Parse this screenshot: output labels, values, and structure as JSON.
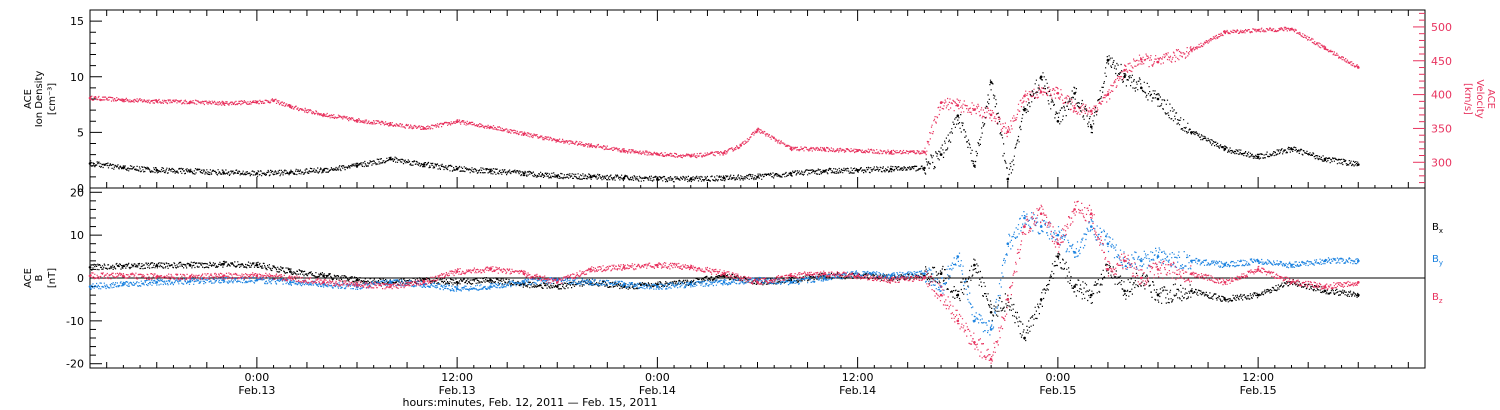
{
  "colors": {
    "black": "#000000",
    "pink": "#e8335f",
    "blue": "#1b82e0"
  },
  "chart_data": [
    {
      "type": "scatter",
      "panel": "plasma",
      "left_axis": {
        "label_line1": "ACE",
        "label_line2": "Ion Density",
        "label_line3": "[cm⁻³]",
        "ylim": [
          0,
          16
        ],
        "ticks": [
          "0",
          "5",
          "10",
          "15"
        ],
        "tick_values": [
          0,
          5,
          10,
          15
        ]
      },
      "right_axis": {
        "label_line1": "ACE",
        "label_line2": "Velocity",
        "label_line3": "[km/s]",
        "ylim": [
          262,
          525
        ],
        "ticks": [
          "300",
          "350",
          "400",
          "450",
          "500"
        ],
        "tick_values": [
          300,
          350,
          400,
          450,
          500
        ]
      },
      "xlim_hours": [
        -10,
        70
      ],
      "series": [
        {
          "axis": "left",
          "color": "#000000",
          "x": [
            -10,
            -8,
            -6,
            -4,
            -2,
            0,
            2,
            4,
            6,
            8,
            10,
            12,
            14,
            16,
            18,
            20,
            22,
            24,
            26,
            28,
            30,
            32,
            34,
            36,
            38,
            40,
            41,
            42,
            43,
            44,
            45,
            46,
            47,
            48,
            49,
            50,
            51,
            52,
            53,
            54,
            56,
            58,
            60,
            62,
            64,
            66
          ],
          "y": [
            2.2,
            1.8,
            1.6,
            1.5,
            1.4,
            1.3,
            1.4,
            1.6,
            2.0,
            2.6,
            2.1,
            1.7,
            1.5,
            1.3,
            1.1,
            1.0,
            0.9,
            0.8,
            0.8,
            0.9,
            1.0,
            1.3,
            1.5,
            1.6,
            1.7,
            1.8,
            3.0,
            6.5,
            2.0,
            9.5,
            0.8,
            7.0,
            10.0,
            6.0,
            8.5,
            5.5,
            11.5,
            10.0,
            9.0,
            8.0,
            5.0,
            3.5,
            2.8,
            3.5,
            2.6,
            2.1
          ]
        },
        {
          "axis": "right",
          "color": "#e8335f",
          "x": [
            -10,
            -8,
            -6,
            -4,
            -2,
            0,
            1,
            2,
            4,
            6,
            8,
            10,
            12,
            14,
            16,
            18,
            20,
            22,
            24,
            26,
            28,
            29,
            30,
            32,
            34,
            36,
            38,
            40,
            41,
            42,
            43,
            44,
            45,
            46,
            47,
            48,
            49,
            50,
            51,
            52,
            53,
            54,
            56,
            58,
            60,
            62,
            64,
            66
          ],
          "y": [
            395,
            392,
            390,
            389,
            387,
            389,
            391,
            382,
            370,
            362,
            356,
            350,
            360,
            352,
            342,
            332,
            325,
            317,
            312,
            309,
            314,
            325,
            348,
            320,
            319,
            317,
            315,
            315,
            388,
            384,
            378,
            370,
            345,
            398,
            404,
            402,
            380,
            376,
            400,
            436,
            452,
            448,
            466,
            492,
            495,
            497,
            468,
            440
          ]
        }
      ]
    },
    {
      "type": "scatter",
      "panel": "magnetic-field",
      "left_axis": {
        "label_line1": "ACE",
        "label_line2": "B",
        "label_line3": "[nT]",
        "ylim": [
          -21,
          21
        ],
        "ticks": [
          "-20",
          "-10",
          "0",
          "10",
          "20"
        ],
        "tick_values": [
          -20,
          -10,
          0,
          10,
          20
        ]
      },
      "xlim_hours": [
        -10,
        70
      ],
      "x_axis": {
        "ticks": [
          {
            "hour": 0,
            "time": "0:00",
            "date": "Feb.13"
          },
          {
            "hour": 12,
            "time": "12:00",
            "date": "Feb.13"
          },
          {
            "hour": 24,
            "time": "0:00",
            "date": "Feb.14"
          },
          {
            "hour": 36,
            "time": "12:00",
            "date": "Feb.14"
          },
          {
            "hour": 48,
            "time": "0:00",
            "date": "Feb.15"
          },
          {
            "hour": 60,
            "time": "12:00",
            "date": "Feb.15"
          }
        ],
        "label": "hours:minutes, Feb. 12, 2011 — Feb. 15, 2011"
      },
      "legend": [
        {
          "label": "B",
          "sub": "x",
          "color": "#000000"
        },
        {
          "label": "B",
          "sub": "y",
          "color": "#1b82e0"
        },
        {
          "label": "B",
          "sub": "z",
          "color": "#e8335f"
        }
      ],
      "series": [
        {
          "name": "Bx",
          "color": "#000000",
          "x": [
            -10,
            -8,
            -6,
            -4,
            -2,
            0,
            2,
            4,
            6,
            8,
            10,
            12,
            14,
            16,
            18,
            20,
            22,
            24,
            26,
            28,
            30,
            32,
            34,
            36,
            38,
            40,
            41,
            42,
            43,
            44,
            45,
            46,
            47,
            48,
            49,
            50,
            51,
            52,
            53,
            54,
            56,
            58,
            60,
            62,
            64,
            66
          ],
          "y": [
            2.5,
            2.8,
            2.9,
            3.0,
            3.2,
            3.0,
            1.5,
            0.5,
            -0.5,
            -1.0,
            -0.5,
            -1.0,
            -0.5,
            -1.5,
            -2.0,
            -1.0,
            -2.0,
            -1.5,
            -1.0,
            0.5,
            -1.0,
            -0.5,
            0.5,
            0.5,
            0.0,
            0.5,
            1.0,
            -4.0,
            3.0,
            -8.0,
            -5.0,
            -14.0,
            -5.0,
            5.0,
            -2.0,
            -4.0,
            2.0,
            -3.0,
            0.0,
            -4.0,
            -3.0,
            -5.0,
            -4.0,
            -1.0,
            -3.0,
            -4.0
          ]
        },
        {
          "name": "By",
          "color": "#1b82e0",
          "x": [
            -10,
            -8,
            -6,
            -4,
            -2,
            0,
            2,
            4,
            6,
            8,
            10,
            12,
            14,
            16,
            18,
            20,
            22,
            24,
            26,
            28,
            30,
            32,
            34,
            36,
            38,
            40,
            41,
            42,
            43,
            44,
            45,
            46,
            47,
            48,
            49,
            50,
            51,
            52,
            53,
            54,
            56,
            58,
            60,
            62,
            64,
            66
          ],
          "y": [
            -2.0,
            -1.5,
            -1.0,
            -0.8,
            -0.5,
            -0.5,
            -1.0,
            -1.5,
            -2.0,
            -1.0,
            -1.5,
            -2.5,
            -2.0,
            -1.0,
            -0.5,
            -1.0,
            -1.5,
            -2.0,
            -1.5,
            -1.0,
            -0.5,
            -1.0,
            0.0,
            1.0,
            0.5,
            1.0,
            -2.0,
            5.0,
            -10.0,
            -12.0,
            8.0,
            14.0,
            12.0,
            10.0,
            6.0,
            12.0,
            8.0,
            4.0,
            4.0,
            5.0,
            4.0,
            3.0,
            4.0,
            3.0,
            4.0,
            4.0
          ]
        },
        {
          "name": "Bz",
          "color": "#e8335f",
          "x": [
            -10,
            -8,
            -6,
            -4,
            -2,
            0,
            2,
            4,
            6,
            8,
            10,
            12,
            14,
            16,
            18,
            20,
            22,
            24,
            26,
            28,
            30,
            32,
            34,
            36,
            38,
            40,
            41,
            42,
            43,
            44,
            45,
            46,
            47,
            48,
            49,
            50,
            51,
            52,
            53,
            54,
            56,
            58,
            60,
            62,
            64,
            66
          ],
          "y": [
            0.5,
            0.5,
            0.3,
            0.2,
            0.5,
            0.5,
            0.0,
            -1.0,
            -1.5,
            -2.0,
            -1.0,
            1.5,
            2.0,
            1.0,
            -1.0,
            2.0,
            2.5,
            3.0,
            2.5,
            1.0,
            -1.0,
            0.5,
            1.0,
            0.5,
            -0.5,
            0.0,
            -4.0,
            -10.0,
            -15.0,
            -19.0,
            -5.0,
            12.0,
            15.0,
            8.0,
            16.0,
            15.0,
            2.0,
            4.0,
            0.0,
            2.0,
            1.0,
            -1.0,
            2.0,
            -1.0,
            -2.0,
            -1.0
          ]
        }
      ]
    }
  ]
}
